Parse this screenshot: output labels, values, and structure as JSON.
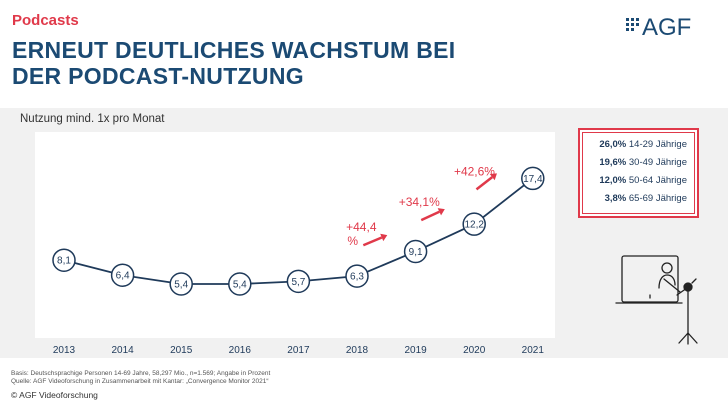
{
  "header": {
    "kicker": "Podcasts",
    "title_line1": "ERNEUT DEUTLICHES WACHSTUM BEI",
    "title_line2": "DER PODCAST-NUTZUNG"
  },
  "logo": {
    "text": "AGF",
    "icon": "agf-logo-icon"
  },
  "colors": {
    "accent": "#e0394a",
    "brand": "#1b4a73",
    "line": "#1f3a5a",
    "panel": "#f1f1f1"
  },
  "chart_data": {
    "type": "line",
    "title": "Nutzung mind. 1x pro Monat",
    "categories": [
      "2013",
      "2014",
      "2015",
      "2016",
      "2017",
      "2018",
      "2019",
      "2020",
      "2021"
    ],
    "values": [
      8.1,
      6.4,
      5.4,
      5.4,
      5.7,
      6.3,
      9.1,
      12.2,
      17.4
    ],
    "value_labels": [
      "8,1",
      "6,4",
      "5,4",
      "5,4",
      "5,7",
      "6,3",
      "9,1",
      "12,2",
      "17,4"
    ],
    "growth_annotations": [
      {
        "text_line1": "+44,4",
        "text_line2": "%",
        "between": [
          "2018",
          "2019"
        ]
      },
      {
        "text_line1": "+34,1%",
        "text_line2": "",
        "between": [
          "2019",
          "2020"
        ]
      },
      {
        "text_line1": "+42,6%",
        "text_line2": "",
        "between": [
          "2020",
          "2021"
        ]
      }
    ],
    "grid": false
  },
  "age_breakdown": [
    {
      "value": "26,0%",
      "label": "14-29 Jährige"
    },
    {
      "value": "19,6%",
      "label": "30-49 Jährige"
    },
    {
      "value": "12,0%",
      "label": "50-64 Jährige"
    },
    {
      "value": "3,8%",
      "label": "65-69 Jährige"
    }
  ],
  "illustration": {
    "icon": "podcaster-microphone-icon"
  },
  "footer": {
    "basis": "Basis: Deutschsprachige Personen 14-69 Jahre, 58,297 Mio., n=1.569; Angabe in Prozent",
    "source": "Quelle: AGF Videoforschung in Zusammenarbeit mit Kantar: „Convergence Monitor 2021“",
    "copyright": "© AGF Videoforschung"
  }
}
